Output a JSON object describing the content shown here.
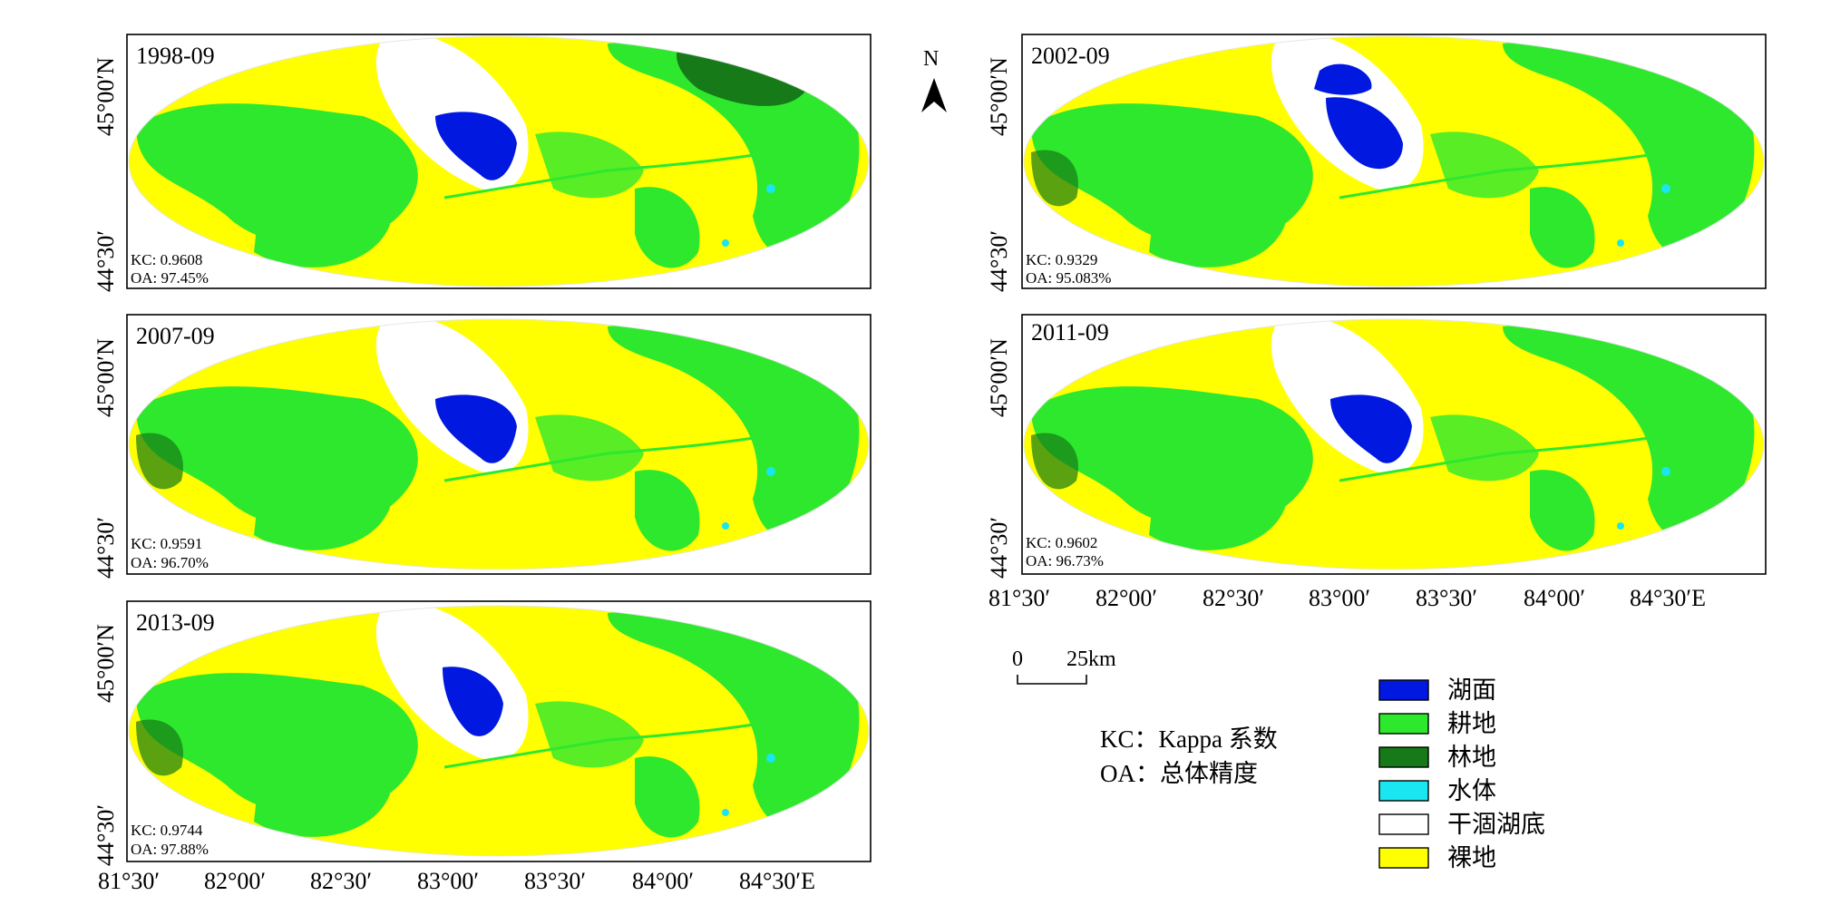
{
  "colors": {
    "lake": "#0018e0",
    "farmland": "#2ee82e",
    "forest": "#157a17",
    "water": "#19e6f0",
    "dry_lakebed": "#ffffff",
    "bare": "#ffff00"
  },
  "panels": [
    {
      "date": "1998-09",
      "kc": "KC: 0.9608",
      "oa": "OA: 97.45%"
    },
    {
      "date": "2002-09",
      "kc": "KC: 0.9329",
      "oa": "OA: 95.083%"
    },
    {
      "date": "2007-09",
      "kc": "KC: 0.9591",
      "oa": "OA: 96.70%"
    },
    {
      "date": "2011-09",
      "kc": "KC: 0.9602",
      "oa": "OA: 96.73%"
    },
    {
      "date": "2013-09",
      "kc": "KC: 0.9744",
      "oa": "OA: 97.88%"
    }
  ],
  "lat_labels": [
    "45°00′N",
    "44°30′"
  ],
  "lon_labels": [
    "81°30′",
    "82°00′",
    "82°30′",
    "83°00′",
    "83°30′",
    "84°00′",
    "84°30′E"
  ],
  "north_label": "N",
  "scale_bar": {
    "zero": "0",
    "distance": "25km"
  },
  "abbreviations": [
    "KC：Kappa 系数",
    "OA：总体精度"
  ],
  "legend": [
    {
      "label": "湖面",
      "color": "#0018e0"
    },
    {
      "label": "耕地",
      "color": "#2ee82e"
    },
    {
      "label": "林地",
      "color": "#157a17"
    },
    {
      "label": "水体",
      "color": "#19e6f0"
    },
    {
      "label": "干涸湖底",
      "color": "#ffffff"
    },
    {
      "label": "裸地",
      "color": "#ffff00"
    }
  ]
}
